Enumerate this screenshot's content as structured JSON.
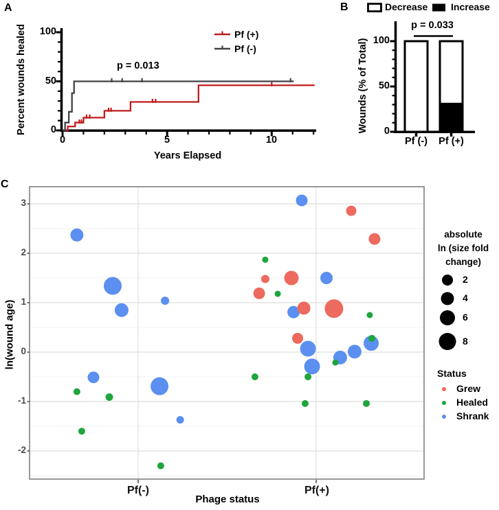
{
  "panels": {
    "a": "A",
    "b": "B",
    "c": "C"
  },
  "chart_data": [
    {
      "panel": "A",
      "type": "line",
      "subtype": "kaplan-meier-step",
      "xlabel": "Years Elapsed",
      "ylabel": "Percent wounds healed",
      "xlim": [
        0,
        12
      ],
      "ylim": [
        0,
        110
      ],
      "xticks": [
        0,
        5,
        10
      ],
      "yticks": [
        0,
        50,
        100
      ],
      "minor_x_step": 1,
      "minor_y_step": 10,
      "annotation": "p = 0.013",
      "legend_position": "top-right",
      "series": [
        {
          "name": "Pf (+)",
          "color": "#bf1c1c",
          "steps": [
            [
              0,
              0
            ],
            [
              0.25,
              4
            ],
            [
              0.6,
              8
            ],
            [
              1.0,
              13
            ],
            [
              2.0,
              20
            ],
            [
              3.25,
              29
            ],
            [
              6.5,
              46
            ],
            [
              12.05,
              46
            ]
          ],
          "censor_marks": [
            [
              0.8,
              8
            ],
            [
              0.9,
              8
            ],
            [
              1.15,
              13
            ],
            [
              1.3,
              13
            ],
            [
              2.2,
              20
            ],
            [
              2.32,
              20
            ],
            [
              4.3,
              29
            ],
            [
              4.45,
              29
            ],
            [
              10.0,
              46
            ]
          ]
        },
        {
          "name": "Pf (-)",
          "color": "#414146",
          "steps": [
            [
              0,
              0
            ],
            [
              0.12,
              8
            ],
            [
              0.3,
              19
            ],
            [
              0.45,
              38
            ],
            [
              0.55,
              50
            ],
            [
              11.05,
              50
            ]
          ],
          "censor_marks": [
            [
              2.35,
              50
            ],
            [
              2.85,
              50
            ],
            [
              3.8,
              50
            ],
            [
              10.9,
              50
            ]
          ]
        }
      ]
    },
    {
      "panel": "B",
      "type": "bar",
      "subtype": "stacked-percent",
      "categories": [
        "Pf (-)",
        "Pf (+)"
      ],
      "series": [
        {
          "name": "Decrease",
          "color": "#ffffff",
          "values": [
            100,
            68
          ]
        },
        {
          "name": "Increase",
          "color": "#000000",
          "values": [
            0,
            32
          ]
        }
      ],
      "ylabel": "Wounds (% of Total)",
      "yticks": [
        0,
        50,
        100
      ],
      "ylim": [
        0,
        120
      ],
      "annotation": "p = 0.033"
    },
    {
      "panel": "C",
      "type": "scatter",
      "subtype": "bubble",
      "xlabel": "Phage status",
      "ylabel": "ln(wound age)",
      "categories": [
        "Pf(-)",
        "Pf(+)"
      ],
      "yticks": [
        3,
        2,
        1,
        0,
        -1,
        -2
      ],
      "ylim": [
        -2.6,
        3.35
      ],
      "grid": "horizontal major+minor, vertical at categories",
      "size_legend": {
        "title_lines": [
          "absolute",
          "ln (size fold",
          "change)"
        ],
        "values": [
          2,
          4,
          6,
          8
        ]
      },
      "status_legend": {
        "title": "Status",
        "items": [
          {
            "label": "Grew",
            "color": "#ed6a5e"
          },
          {
            "label": "Healed",
            "color": "#1ea53c"
          },
          {
            "label": "Shrank",
            "color": "#5b8ff0"
          }
        ]
      },
      "points": [
        {
          "cat": 0,
          "jitter": -0.344,
          "y": 2.37,
          "status": "Shrank",
          "r": 9.5
        },
        {
          "cat": 0,
          "jitter": -0.143,
          "y": 1.34,
          "status": "Shrank",
          "r": 13
        },
        {
          "cat": 0,
          "jitter": -0.093,
          "y": 0.85,
          "status": "Shrank",
          "r": 10
        },
        {
          "cat": 0,
          "jitter": 0.151,
          "y": 1.04,
          "status": "Shrank",
          "r": 6
        },
        {
          "cat": 0,
          "jitter": -0.251,
          "y": -0.51,
          "status": "Shrank",
          "r": 8.5
        },
        {
          "cat": 0,
          "jitter": -0.344,
          "y": -0.8,
          "status": "Healed",
          "r": 5
        },
        {
          "cat": 0,
          "jitter": -0.162,
          "y": -0.91,
          "status": "Healed",
          "r": 5.5
        },
        {
          "cat": 0,
          "jitter": 0.12,
          "y": -0.69,
          "status": "Shrank",
          "r": 13
        },
        {
          "cat": 0,
          "jitter": 0.236,
          "y": -1.37,
          "status": "Shrank",
          "r": 5.5
        },
        {
          "cat": 0,
          "jitter": -0.317,
          "y": -1.6,
          "status": "Healed",
          "r": 5
        },
        {
          "cat": 0,
          "jitter": 0.127,
          "y": -2.3,
          "status": "Healed",
          "r": 5
        },
        {
          "cat": 1,
          "jitter": -0.081,
          "y": 3.07,
          "status": "Shrank",
          "r": 8.5
        },
        {
          "cat": 1,
          "jitter": 0.197,
          "y": 2.86,
          "status": "Grew",
          "r": 7.5
        },
        {
          "cat": 1,
          "jitter": 0.328,
          "y": 2.29,
          "status": "Grew",
          "r": 8.5
        },
        {
          "cat": 1,
          "jitter": -0.286,
          "y": 1.87,
          "status": "Healed",
          "r": 4.5
        },
        {
          "cat": 1,
          "jitter": -0.286,
          "y": 1.48,
          "status": "Grew",
          "r": 6
        },
        {
          "cat": 1,
          "jitter": -0.139,
          "y": 1.5,
          "status": "Grew",
          "r": 10.5
        },
        {
          "cat": 1,
          "jitter": 0.058,
          "y": 1.5,
          "status": "Shrank",
          "r": 9
        },
        {
          "cat": 1,
          "jitter": -0.32,
          "y": 1.19,
          "status": "Grew",
          "r": 8.5
        },
        {
          "cat": 1,
          "jitter": -0.216,
          "y": 1.18,
          "status": "Healed",
          "r": 4.5
        },
        {
          "cat": 1,
          "jitter": -0.127,
          "y": 0.81,
          "status": "Shrank",
          "r": 9
        },
        {
          "cat": 1,
          "jitter": -0.069,
          "y": 0.89,
          "status": "Grew",
          "r": 9.5
        },
        {
          "cat": 1,
          "jitter": 0.1,
          "y": 0.88,
          "status": "Grew",
          "r": 13.5
        },
        {
          "cat": 1,
          "jitter": 0.301,
          "y": 0.75,
          "status": "Healed",
          "r": 4.5
        },
        {
          "cat": 1,
          "jitter": -0.104,
          "y": 0.28,
          "status": "Grew",
          "r": 8
        },
        {
          "cat": 1,
          "jitter": -0.046,
          "y": 0.07,
          "status": "Shrank",
          "r": 11.5
        },
        {
          "cat": 1,
          "jitter": -0.023,
          "y": -0.29,
          "status": "Shrank",
          "r": 11.5
        },
        {
          "cat": 1,
          "jitter": 0.135,
          "y": -0.11,
          "status": "Shrank",
          "r": 10
        },
        {
          "cat": 1,
          "jitter": 0.216,
          "y": 0.01,
          "status": "Shrank",
          "r": 10
        },
        {
          "cat": 1,
          "jitter": 0.309,
          "y": 0.18,
          "status": "Shrank",
          "r": 11
        },
        {
          "cat": 1,
          "jitter": 0.313,
          "y": 0.28,
          "status": "Healed",
          "r": 5
        },
        {
          "cat": 1,
          "jitter": 0.108,
          "y": -0.21,
          "status": "Healed",
          "r": 4.5
        },
        {
          "cat": 1,
          "jitter": -0.046,
          "y": -0.5,
          "status": "Healed",
          "r": 5
        },
        {
          "cat": 1,
          "jitter": -0.344,
          "y": -0.5,
          "status": "Healed",
          "r": 5
        },
        {
          "cat": 1,
          "jitter": -0.062,
          "y": -1.04,
          "status": "Healed",
          "r": 5
        },
        {
          "cat": 1,
          "jitter": 0.282,
          "y": -1.04,
          "status": "Healed",
          "r": 5
        }
      ]
    }
  ]
}
